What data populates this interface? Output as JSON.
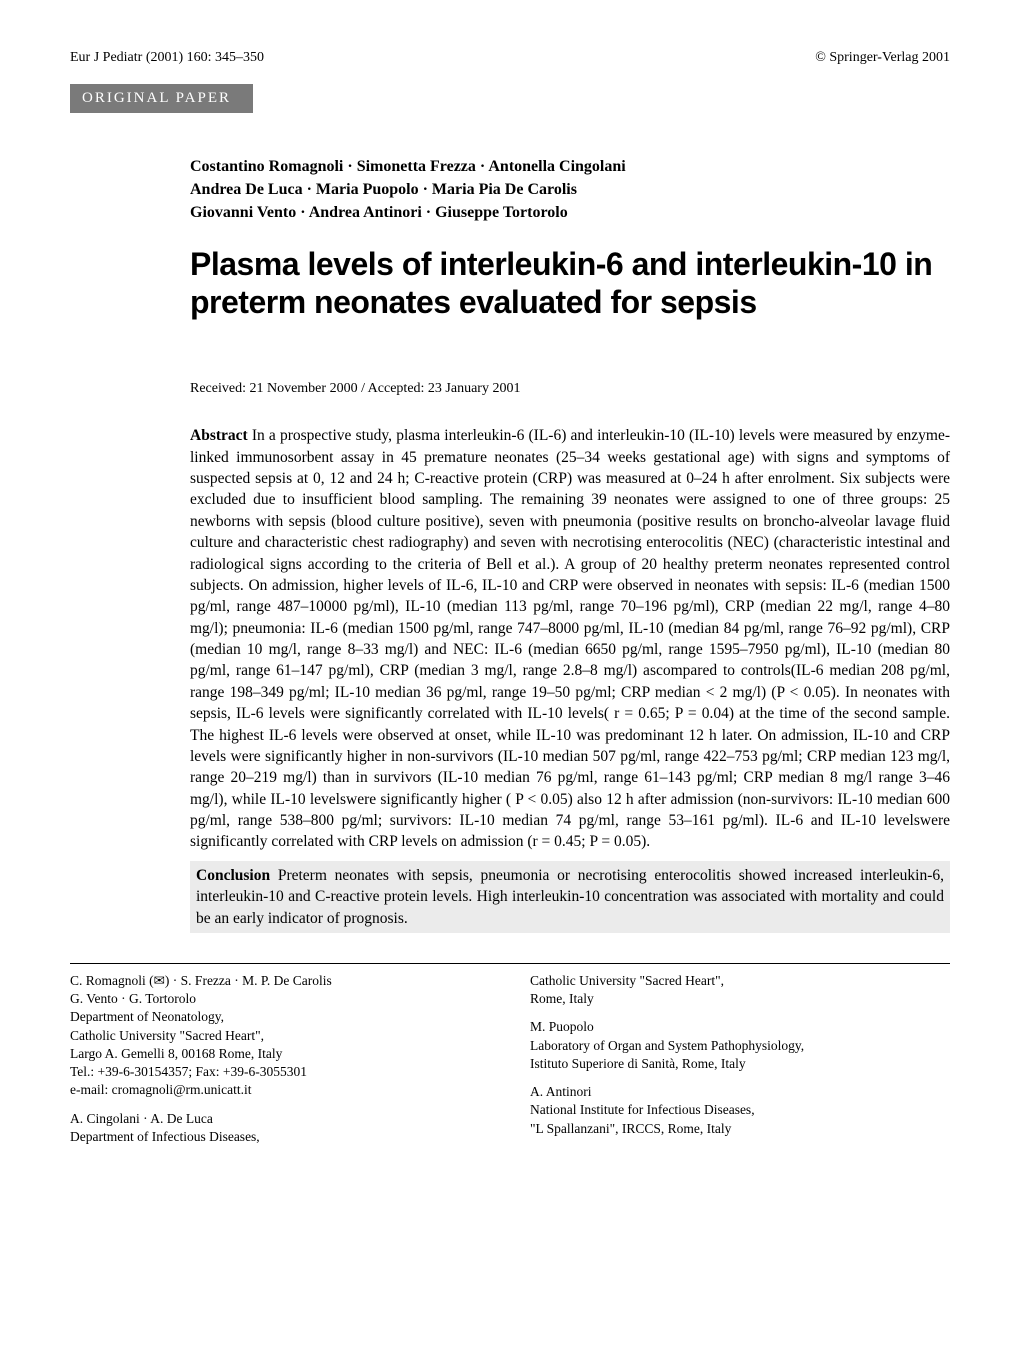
{
  "header": {
    "journal_ref": "Eur J Pediatr (2001) 160: 345–350",
    "copyright": "© Springer-Verlag 2001"
  },
  "section_badge": "ORIGINAL PAPER",
  "authors": "Costantino Romagnoli · Simonetta Frezza · Antonella Cingolani\nAndrea De Luca · Maria Puopolo · Maria Pia De Carolis\nGiovanni Vento · Andrea Antinori · Giuseppe Tortorolo",
  "title": "Plasma levels of interleukin-6 and interleukin-10 in preterm neonates evaluated for sepsis",
  "received": "Received: 21 November 2000 / Accepted: 23 January 2001",
  "abstract": {
    "lead": "Abstract",
    "body": " In a prospective study, plasma interleukin-6 (IL-6) and interleukin-10 (IL-10) levels were measured by enzyme-linked immunosorbent assay in 45 premature neonates (25–34 weeks gestational age) with signs and symptoms of suspected sepsis at 0, 12 and 24 h; C-reactive protein (CRP) was measured at 0–24 h after enrolment. Six subjects were excluded due to insufficient blood sampling. The remaining 39 neonates were assigned to one of three groups: 25 newborns with sepsis (blood culture positive), seven with pneumonia (positive results on broncho-alveolar lavage fluid culture and characteristic chest radiography) and seven with necrotising enterocolitis (NEC) (characteristic intestinal and radiological signs according to the criteria of Bell et al.). A group of 20 healthy preterm neonates represented control subjects. On admission, higher levels of IL-6, IL-10 and CRP were observed in neonates with sepsis: IL-6 (median 1500 pg/ml, range 487–10000 pg/ml), IL-10 (median 113 pg/ml, range 70–196 pg/ml), CRP (median 22 mg/l, range 4–80 mg/l); pneumonia: IL-6 (median 1500 pg/ml, range 747–8000 pg/ml, IL-10 (median 84 pg/ml, range 76–92 pg/ml), CRP (median 10 mg/l, range 8–33 mg/l) and NEC: IL-6 (median 6650 pg/ml, range 1595–7950 pg/ml), IL-10 (median 80 pg/ml, range 61–147 pg/ml), CRP (median 3 mg/l, range 2.8–8 mg/l) ascompared to controls(IL-6 median 208 pg/ml, range 198–349 pg/ml; IL-10 median 36 pg/ml, range 19–50 pg/ml; CRP median < 2 mg/l) (P < 0.05). In neonates with sepsis, IL-6 levels were significantly correlated with IL-10 levels( r = 0.65; P = 0.04) at the time of the second sample. The highest IL-6 levels were observed at onset, while IL-10 was predominant 12 h later. On admission, IL-10 and CRP levels were significantly higher in non-survivors (IL-10 median 507 pg/ml, range 422–753 pg/ml; CRP median 123 mg/l, range 20–219 mg/l) than in survivors (IL-10 median 76 pg/ml, range 61–143 pg/ml; CRP median 8 mg/l range 3–46 mg/l), while IL-10 levelswere significantly higher ( P < 0.05) also 12 h after admission (non-survivors: IL-10 median 600 pg/ml, range 538–800 pg/ml; survivors: IL-10 median 74 pg/ml, range 53–161 pg/ml). IL-6 and IL-10 levelswere significantly correlated with CRP levels on admission (r = 0.45; P = 0.05)."
  },
  "conclusion": {
    "lead": "Conclusion",
    "body": " Preterm neonates with sepsis, pneumonia or necrotising enterocolitis showed increased interleukin-6, interleukin-10 and C-reactive protein levels. High interleukin-10 concentration was associated with mortality and could be an early indicator of prognosis."
  },
  "footer": {
    "left": [
      "C. Romagnoli (✉) · S. Frezza · M. P. De Carolis\nG. Vento · G. Tortorolo\nDepartment of Neonatology,\nCatholic University \"Sacred Heart\",\nLargo A. Gemelli 8, 00168 Rome, Italy\nTel.: +39-6-30154357; Fax: +39-6-3055301\ne-mail: cromagnoli@rm.unicatt.it",
      "A. Cingolani · A. De Luca\nDepartment of Infectious Diseases,"
    ],
    "right": [
      "Catholic University \"Sacred Heart\",\nRome, Italy",
      "M. Puopolo\nLaboratory of Organ and System Pathophysiology,\nIstituto Superiore di Sanità, Rome, Italy",
      "A. Antinori\nNational Institute for Infectious Diseases,\n\"L Spallanzani\", IRCCS, Rome, Italy"
    ]
  }
}
